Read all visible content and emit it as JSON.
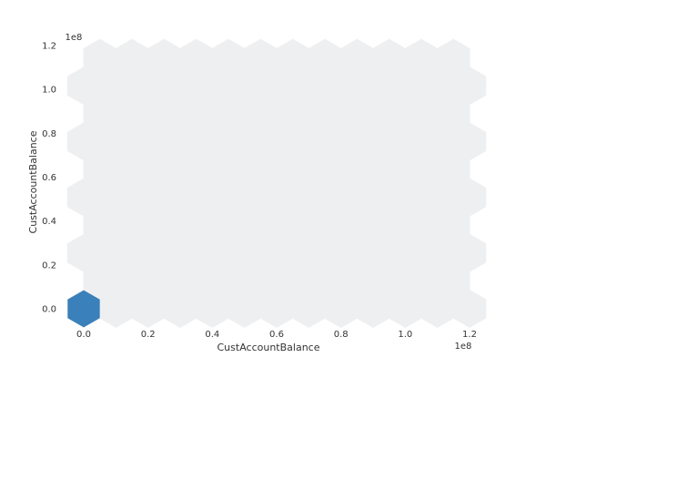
{
  "chart_data": {
    "type": "hexbin",
    "title": "",
    "xlabel": "CustAccountBalance",
    "ylabel": "CustAccountBalance",
    "x_offset_label": "1e8",
    "y_offset_label": "1e8",
    "xlim": [
      0,
      120000000
    ],
    "ylim": [
      0,
      120000000
    ],
    "x_ticks": [
      0,
      20000000,
      40000000,
      60000000,
      80000000,
      100000000,
      120000000
    ],
    "x_tick_labels": [
      "0.0",
      "0.2",
      "0.4",
      "0.6",
      "0.8",
      "1.0",
      "1.2"
    ],
    "y_ticks": [
      0,
      20000000,
      40000000,
      60000000,
      80000000,
      100000000,
      120000000
    ],
    "y_tick_labels": [
      "0.0",
      "0.2",
      "0.4",
      "0.6",
      "0.8",
      "1.0",
      "1.2"
    ],
    "grid": false,
    "gridsize": 12,
    "hexbins": [
      {
        "x": 0,
        "y": 0,
        "density": "high"
      }
    ],
    "colors": {
      "empty_bin": "#eeeff1",
      "high_density": "#3a80ba",
      "text": "#333333"
    }
  }
}
